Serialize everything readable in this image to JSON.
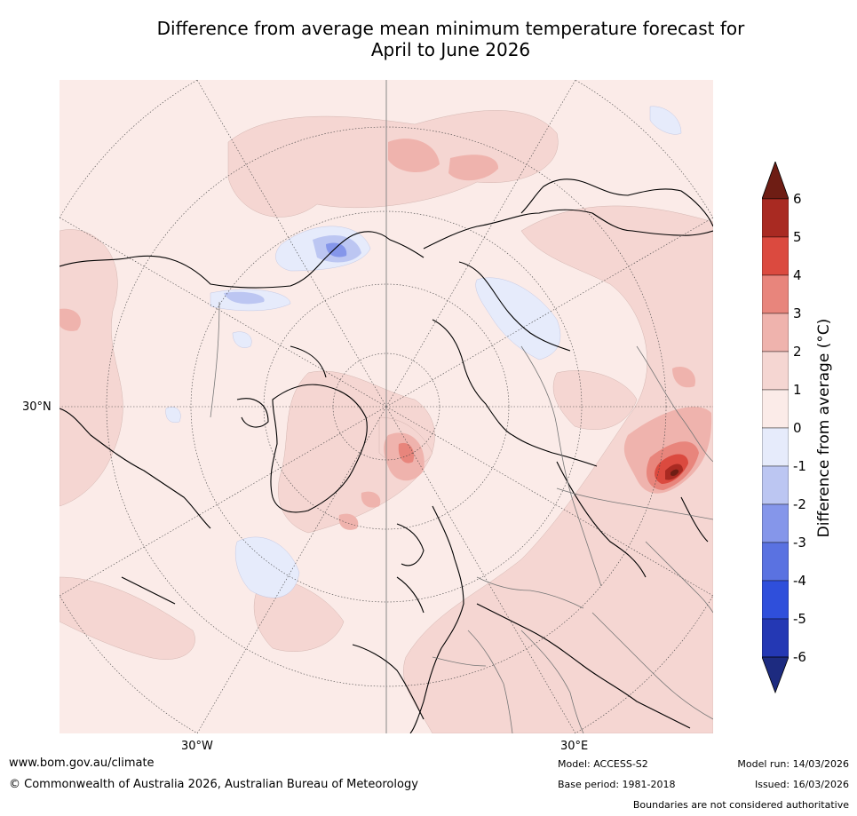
{
  "title": {
    "line1": "Difference from average mean minimum temperature forecast for",
    "line2": "April to June 2026"
  },
  "map": {
    "type": "polar-stereographic",
    "hemisphere": "northern",
    "axis_labels": {
      "left": "30°N",
      "bottom_left": "30°W",
      "bottom_right": "30°E"
    }
  },
  "colorbar": {
    "label": "Difference from average ($^\\circ$C)",
    "label_text": "Difference from average (°C)",
    "ticks": [
      "6",
      "5",
      "4",
      "3",
      "2",
      "1",
      "0",
      "-1",
      "-2",
      "-3",
      "-4",
      "-5",
      "-6"
    ],
    "colors": {
      "extend_high": "#6e1d14",
      "5_to_6": "#a92a22",
      "4_to_5": "#db4a3f",
      "3_to_4": "#e8857c",
      "2_to_3": "#efb3ad",
      "1_to_2": "#f5d6d2",
      "0_to_1": "#fbebe8",
      "m1_to_0": "#e6ebfb",
      "m2_to_m1": "#bcc6f2",
      "m3_to_m2": "#8596ea",
      "m4_to_m3": "#5a72e1",
      "m5_to_m4": "#2f4fdb",
      "m6_to_m5": "#2438b4",
      "extend_low": "#1d2b80"
    }
  },
  "footer": {
    "website": "www.bom.gov.au/climate",
    "copyright": "© Commonwealth of Australia 2026, Australian Bureau of Meteorology",
    "model": "Model: ACCESS-S2",
    "base_period": "Base period: 1981-2018",
    "model_run": "Model run: 14/03/2026",
    "issued": "Issued: 16/03/2026",
    "disclaimer": "Boundaries are not considered authoritative"
  }
}
